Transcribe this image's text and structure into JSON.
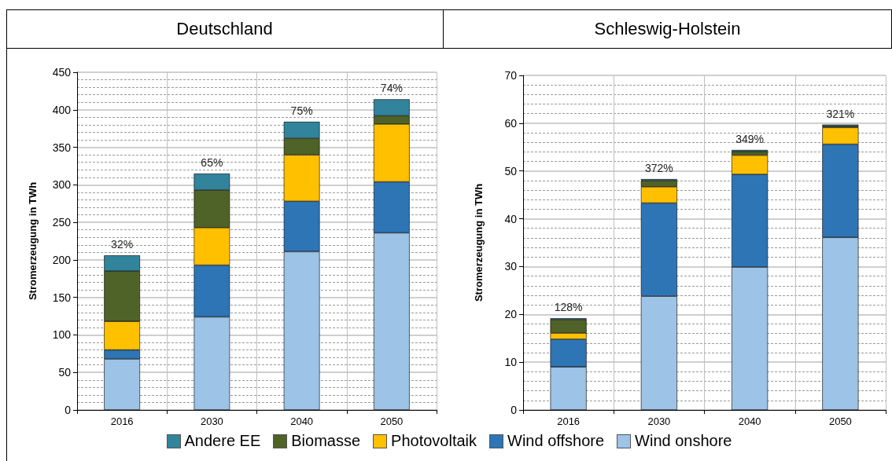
{
  "chart_data": [
    {
      "type": "bar",
      "title": "Deutschland",
      "ylabel": "Stromerzeugung in TWh",
      "categories": [
        "2016",
        "2030",
        "2040",
        "2050"
      ],
      "stacked": true,
      "ylim": [
        0,
        450
      ],
      "yticks": [
        0,
        50,
        100,
        150,
        200,
        250,
        300,
        350,
        400,
        450
      ],
      "grid": true,
      "legend": "bottom",
      "series": [
        {
          "name": "Wind onshore",
          "color": "#9dc3e6",
          "values": [
            68,
            124,
            211,
            236
          ]
        },
        {
          "name": "Wind offshore",
          "color": "#2e75b6",
          "values": [
            12,
            69,
            67,
            68
          ]
        },
        {
          "name": "Photovoltaik",
          "color": "#ffc000",
          "values": [
            38,
            50,
            62,
            77
          ]
        },
        {
          "name": "Biomasse",
          "color": "#4f6228",
          "values": [
            67,
            50,
            22,
            11
          ]
        },
        {
          "name": "Andere EE",
          "color": "#31849b",
          "values": [
            21,
            22,
            22,
            22
          ]
        }
      ],
      "annotations": [
        "32%",
        "65%",
        "75%",
        "74%"
      ]
    },
    {
      "type": "bar",
      "title": "Schleswig-Holstein",
      "ylabel": "Stromerzeugung in TWh",
      "categories": [
        "2016",
        "2030",
        "2040",
        "2050"
      ],
      "stacked": true,
      "ylim": [
        0,
        70
      ],
      "yticks": [
        0,
        10,
        20,
        30,
        40,
        50,
        60,
        70
      ],
      "grid": true,
      "series": [
        {
          "color": "#9dc3e6",
          "values": [
            9,
            23.8,
            29.9,
            36.1
          ]
        },
        {
          "color": "#2e75b6",
          "values": [
            5.8,
            19.5,
            19.4,
            19.5
          ]
        },
        {
          "color": "#ffc000",
          "values": [
            1.3,
            3.4,
            4.0,
            3.5
          ]
        },
        {
          "color": "#4f6228",
          "values": [
            2.8,
            1.3,
            0.8,
            0.3
          ]
        },
        {
          "color": "#31849b",
          "values": [
            0.3,
            0.3,
            0.3,
            0.3
          ]
        }
      ],
      "annotations": [
        "128%",
        "372%",
        "349%",
        "321%"
      ]
    }
  ]
}
